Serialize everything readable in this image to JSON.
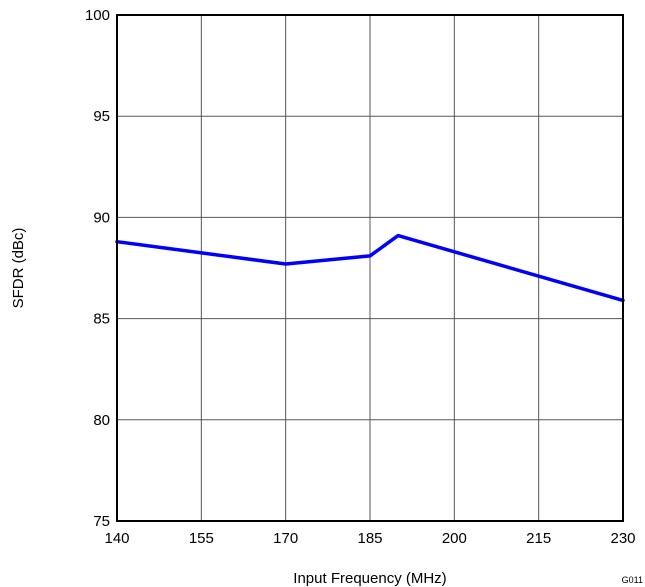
{
  "chart_data": {
    "type": "line",
    "title": "",
    "xlabel": "Input Frequency (MHz)",
    "ylabel": "SFDR (dBc)",
    "xlim": [
      140,
      230
    ],
    "ylim": [
      75,
      100
    ],
    "x_ticks": [
      140,
      155,
      170,
      185,
      200,
      215,
      230
    ],
    "y_ticks": [
      75,
      80,
      85,
      90,
      95,
      100
    ],
    "grid": true,
    "series": [
      {
        "x": [
          140,
          170,
          185,
          190,
          230
        ],
        "y": [
          88.8,
          87.7,
          88.1,
          89.1,
          85.9
        ],
        "color": "#0000ff"
      }
    ],
    "figure_code": "G011"
  }
}
